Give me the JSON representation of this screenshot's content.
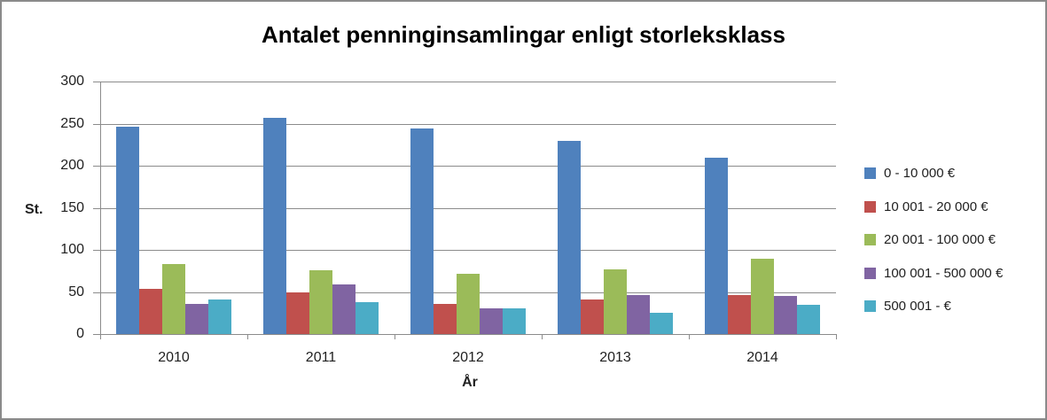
{
  "window": {
    "background": "#FFFFFF",
    "border_color": "#8A8A8A"
  },
  "chart_data": {
    "type": "bar",
    "title": "Antalet penninginsamlingar enligt storleksklass",
    "ylabel": "St.",
    "xlabel": "År",
    "categories": [
      "2010",
      "2011",
      "2012",
      "2013",
      "2014"
    ],
    "series": [
      {
        "name": "0 - 10 000 €",
        "color": "#4F81BD",
        "values": [
          246,
          257,
          244,
          229,
          210
        ]
      },
      {
        "name": "10 001 - 20 000 €",
        "color": "#C0504D",
        "values": [
          54,
          50,
          36,
          41,
          46
        ]
      },
      {
        "name": "20 001 - 100 000 €",
        "color": "#9BBB59",
        "values": [
          83,
          76,
          72,
          77,
          90
        ]
      },
      {
        "name": "100 001 - 500 000 €",
        "color": "#8064A2",
        "values": [
          36,
          59,
          31,
          46,
          45
        ]
      },
      {
        "name": "500 001 - €",
        "color": "#4BACC6",
        "values": [
          41,
          38,
          31,
          25,
          35
        ]
      }
    ],
    "ylim": [
      0,
      300
    ],
    "ytick_interval": 50,
    "yticks": [
      0,
      50,
      100,
      150,
      200,
      250,
      300
    ],
    "grid": true,
    "legend_position": "right",
    "gridline_color": "#8C8C8C",
    "text_color": "#1F1F1F"
  }
}
